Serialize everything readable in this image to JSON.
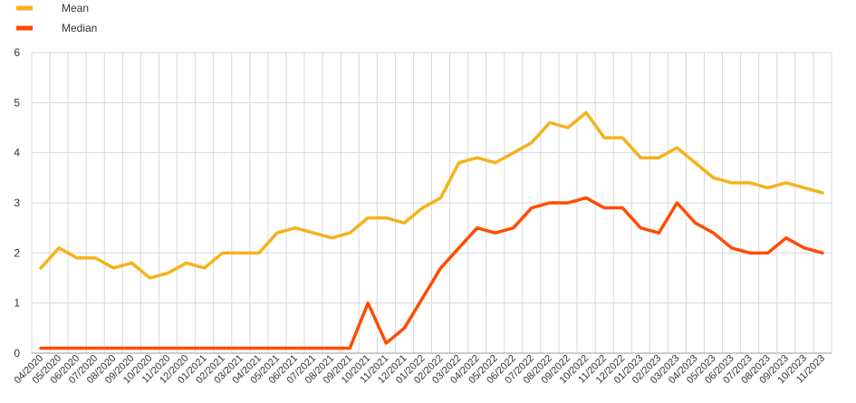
{
  "chart_data": {
    "type": "line",
    "title": "",
    "xlabel": "",
    "ylabel": "",
    "ylim": [
      0,
      6
    ],
    "yticks": [
      0,
      1,
      2,
      3,
      4,
      5,
      6
    ],
    "grid": "vertical and horizontal",
    "legend_position": "top-left",
    "categories": [
      "04/2020",
      "05/2020",
      "06/2020",
      "07/2020",
      "08/2020",
      "09/2020",
      "10/2020",
      "11/2020",
      "12/2020",
      "01/2021",
      "02/2021",
      "03/2021",
      "04/2021",
      "05/2021",
      "06/2021",
      "07/2021",
      "08/2021",
      "09/2021",
      "10/2021",
      "11/2021",
      "12/2021",
      "01/2022",
      "02/2022",
      "03/2022",
      "04/2022",
      "05/2022",
      "06/2022",
      "07/2022",
      "08/2022",
      "09/2022",
      "10/2022",
      "11/2022",
      "12/2022",
      "01/2023",
      "02/2023",
      "03/2023",
      "04/2023",
      "05/2023",
      "06/2023",
      "07/2023",
      "08/2023",
      "09/2023",
      "10/2023",
      "11/2023"
    ],
    "series": [
      {
        "name": "Mean",
        "color": "#F5B21B",
        "values": [
          1.7,
          2.1,
          1.9,
          1.9,
          1.7,
          1.8,
          1.5,
          1.6,
          1.8,
          1.7,
          2.0,
          2.0,
          2.0,
          2.4,
          2.5,
          2.4,
          2.3,
          2.4,
          2.7,
          2.7,
          2.6,
          2.9,
          3.1,
          3.8,
          3.9,
          3.8,
          4.0,
          4.2,
          4.6,
          4.5,
          4.8,
          4.3,
          4.3,
          3.9,
          3.9,
          4.1,
          3.8,
          3.5,
          3.4,
          3.4,
          3.3,
          3.4,
          3.3,
          3.2
        ]
      },
      {
        "name": "Median",
        "color": "#FF4B00",
        "values": [
          0.1,
          0.1,
          0.1,
          0.1,
          0.1,
          0.1,
          0.1,
          0.1,
          0.1,
          0.1,
          0.1,
          0.1,
          0.1,
          0.1,
          0.1,
          0.1,
          0.1,
          0.1,
          1.0,
          0.2,
          0.5,
          1.1,
          1.7,
          2.1,
          2.5,
          2.4,
          2.5,
          2.9,
          3.0,
          3.0,
          3.1,
          2.9,
          2.9,
          2.5,
          2.4,
          3.0,
          2.6,
          2.4,
          2.1,
          2.0,
          2.0,
          2.3,
          2.1,
          2.0
        ]
      }
    ],
    "colors": {
      "grid": "#D9D9D9",
      "axis": "#999999"
    }
  }
}
